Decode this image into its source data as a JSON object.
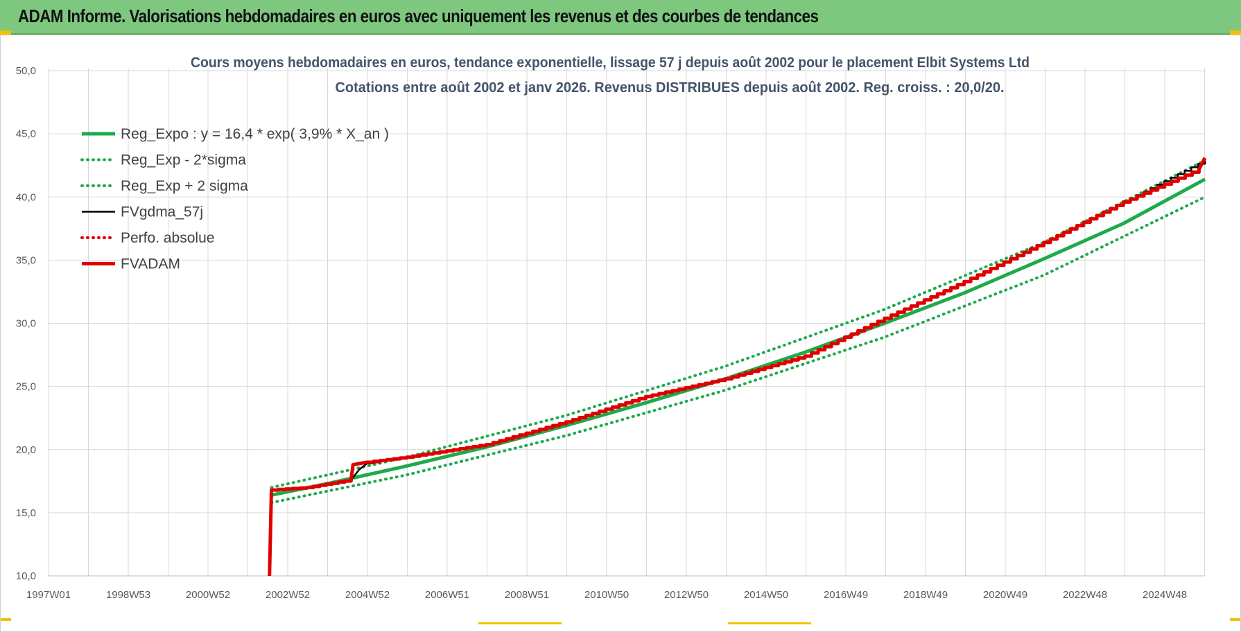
{
  "header": {
    "title": "ADAM Informe. Valorisations hebdomadaires en euros avec uniquement les revenus et des courbes de tendances"
  },
  "colors": {
    "header_bg": "#7dc77f",
    "accent_yellow": "#f2c200",
    "reg_expo": "#1faa4b",
    "sigma_band": "#1faa4b",
    "fvgdma": "#000000",
    "perfo": "#e00000",
    "fvadam": "#e00000",
    "grid": "#d9d9d9"
  },
  "chart_data": {
    "type": "line",
    "title_lines": [
      "Cours moyens hebdomadaires en euros, tendance exponentielle, lissage 57 j depuis août 2002 pour le placement Elbit Systems Ltd",
      "Cotations entre août 2002 et janv 2026.  Revenus DISTRIBUES depuis août 2002. Reg.  croiss. : 20,0/20."
    ],
    "x_tick_labels": [
      "1997W01",
      "1998W53",
      "2000W52",
      "2002W52",
      "2004W52",
      "2006W51",
      "2008W51",
      "2010W50",
      "2012W50",
      "2014W50",
      "2016W49",
      "2018W49",
      "2020W49",
      "2022W48",
      "2024W48"
    ],
    "x_range_years": [
      1997.0,
      2026.05
    ],
    "ylim": [
      10,
      50
    ],
    "y_ticks": [
      "10,0",
      "15,0",
      "20,0",
      "25,0",
      "30,0",
      "35,0",
      "40,0",
      "45,0",
      "50,0"
    ],
    "grid": true,
    "legend_position": "top-left",
    "series": [
      {
        "name": "Reg_Expo : y = 16,4 * exp( 3,9% *  X_an )",
        "style": "solid-thick",
        "color": "#1faa4b",
        "x": [
          2002.6,
          2004,
          2006,
          2008,
          2010,
          2012,
          2014,
          2016,
          2018,
          2020,
          2022,
          2024,
          2026.05
        ],
        "y": [
          16.4,
          17.3,
          18.7,
          20.2,
          21.9,
          23.7,
          25.6,
          27.7,
          30.0,
          32.4,
          35.1,
          37.9,
          41.4
        ]
      },
      {
        "name": "Reg_Exp - 2*sigma",
        "style": "dotted",
        "color": "#1faa4b",
        "x": [
          2002.6,
          2006,
          2010,
          2014,
          2018,
          2022,
          2026.05
        ],
        "y": [
          15.8,
          18.0,
          21.1,
          24.7,
          28.9,
          33.8,
          40.0
        ]
      },
      {
        "name": "Reg_Exp + 2 sigma",
        "style": "dotted",
        "color": "#1faa4b",
        "x": [
          2002.6,
          2006,
          2010,
          2014,
          2018,
          2022,
          2026.05
        ],
        "y": [
          17.0,
          19.4,
          22.7,
          26.6,
          31.1,
          36.4,
          42.9
        ]
      },
      {
        "name": "FVgdma_57j",
        "style": "solid",
        "color": "#000000",
        "x": [
          2002.6,
          2003.5,
          2004.6,
          2004.8,
          2005.0,
          2006.0,
          2008.0,
          2010.0,
          2012.0,
          2014.0,
          2016.0,
          2018.0,
          2020.0,
          2022.0,
          2024.0,
          2026.05
        ],
        "y": [
          16.8,
          17.0,
          17.6,
          18.4,
          18.9,
          19.4,
          20.4,
          22.2,
          24.2,
          25.6,
          27.4,
          30.4,
          33.3,
          36.4,
          39.6,
          42.9
        ]
      },
      {
        "name": "Perfo. absolue",
        "style": "dotted",
        "color": "#e00000",
        "x": [],
        "y": []
      },
      {
        "name": "FVADAM",
        "style": "solid-thick",
        "color": "#e00000",
        "x": [
          2002.55,
          2002.6,
          2003.5,
          2004.6,
          2004.65,
          2005.0,
          2006.0,
          2008.0,
          2010.0,
          2012.0,
          2014.0,
          2016.0,
          2018.0,
          2020.0,
          2022.0,
          2024.0,
          2025.9,
          2026.05
        ],
        "y": [
          10.0,
          16.8,
          17.0,
          17.6,
          18.8,
          19.0,
          19.4,
          20.4,
          22.2,
          24.2,
          25.6,
          27.4,
          30.4,
          33.3,
          36.4,
          39.6,
          42.2,
          43.1
        ]
      }
    ]
  }
}
